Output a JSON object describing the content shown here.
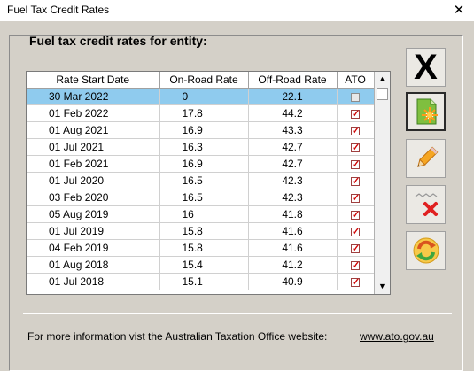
{
  "window": {
    "title": "Fuel Tax Credit Rates",
    "close_glyph": "✕"
  },
  "heading": "Fuel tax credit rates for entity:",
  "table": {
    "columns": [
      "Rate Start Date",
      "On-Road Rate",
      "Off-Road Rate",
      "ATO"
    ],
    "rows": [
      {
        "date": "30 Mar 2022",
        "onroad": "0",
        "offroad": "22.1",
        "ato": false,
        "selected": true
      },
      {
        "date": "01 Feb 2022",
        "onroad": "17.8",
        "offroad": "44.2",
        "ato": true
      },
      {
        "date": "01 Aug 2021",
        "onroad": "16.9",
        "offroad": "43.3",
        "ato": true
      },
      {
        "date": "01 Jul 2021",
        "onroad": "16.3",
        "offroad": "42.7",
        "ato": true
      },
      {
        "date": "01 Feb 2021",
        "onroad": "16.9",
        "offroad": "42.7",
        "ato": true
      },
      {
        "date": "01 Jul 2020",
        "onroad": "16.5",
        "offroad": "42.3",
        "ato": true
      },
      {
        "date": "03 Feb 2020",
        "onroad": "16.5",
        "offroad": "42.3",
        "ato": true
      },
      {
        "date": "05 Aug 2019",
        "onroad": "16",
        "offroad": "41.8",
        "ato": true
      },
      {
        "date": "01 Jul 2019",
        "onroad": "15.8",
        "offroad": "41.6",
        "ato": true
      },
      {
        "date": "04 Feb 2019",
        "onroad": "15.8",
        "offroad": "41.6",
        "ato": true
      },
      {
        "date": "01 Aug 2018",
        "onroad": "15.4",
        "offroad": "41.2",
        "ato": true
      },
      {
        "date": "01 Jul 2018",
        "onroad": "15.1",
        "offroad": "40.9",
        "ato": true
      }
    ]
  },
  "scrollbar": {
    "up": "▲",
    "down": "▼"
  },
  "buttons": {
    "close": {
      "icon": "close-x-icon",
      "glyph": "X"
    },
    "new": {
      "icon": "new-document-icon"
    },
    "edit": {
      "icon": "pencil-icon"
    },
    "delete": {
      "icon": "delete-icon"
    },
    "refresh": {
      "icon": "refresh-icon"
    }
  },
  "footer": {
    "text": "For more information vist the Australian Taxation Office website:",
    "link": "www.ato.gov.au"
  },
  "colors": {
    "selection": "#8fcbee",
    "dialog_bg": "#d4d0c8",
    "check_red": "#d00000"
  }
}
